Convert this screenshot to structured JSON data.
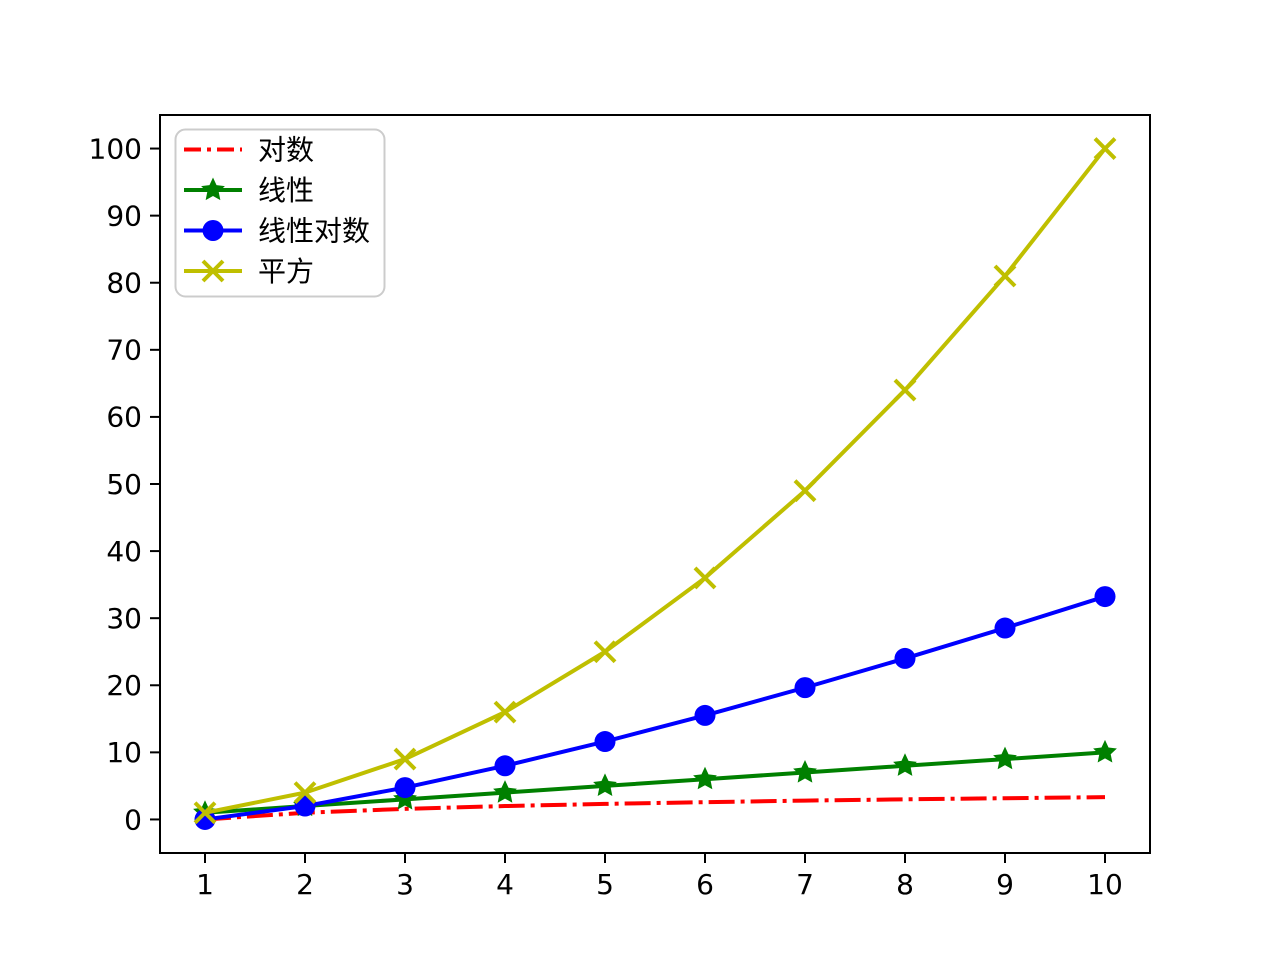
{
  "figure": {
    "background": "#ffffff",
    "axis_color": "#000000",
    "legend_frame_color": "#cccccc"
  },
  "chart_data": {
    "type": "line",
    "title": "",
    "xlabel": "",
    "ylabel": "",
    "grid": false,
    "x": [
      1,
      2,
      3,
      4,
      5,
      6,
      7,
      8,
      9,
      10
    ],
    "xlim": [
      0.55,
      10.45
    ],
    "ylim": [
      -5,
      105
    ],
    "xticks": [
      1,
      2,
      3,
      4,
      5,
      6,
      7,
      8,
      9,
      10
    ],
    "yticks": [
      0,
      10,
      20,
      30,
      40,
      50,
      60,
      70,
      80,
      90,
      100
    ],
    "legend": {
      "position": "upper-left"
    },
    "series": [
      {
        "name": "对数",
        "color": "#ff0000",
        "linestyle": "dashdot",
        "marker": "none",
        "values": [
          0,
          1,
          1.58,
          2,
          2.32,
          2.58,
          2.81,
          3,
          3.17,
          3.32
        ]
      },
      {
        "name": "线性",
        "color": "#008000",
        "linestyle": "solid",
        "marker": "star",
        "values": [
          1,
          2,
          3,
          4,
          5,
          6,
          7,
          8,
          9,
          10
        ]
      },
      {
        "name": "线性对数",
        "color": "#0000ff",
        "linestyle": "solid",
        "marker": "circle",
        "values": [
          0,
          2,
          4.75,
          8,
          11.61,
          15.51,
          19.65,
          24,
          28.53,
          33.22
        ]
      },
      {
        "name": "平方",
        "color": "#bfbf00",
        "linestyle": "solid",
        "marker": "x",
        "values": [
          1,
          4,
          9,
          16,
          25,
          36,
          49,
          64,
          81,
          100
        ]
      }
    ]
  }
}
